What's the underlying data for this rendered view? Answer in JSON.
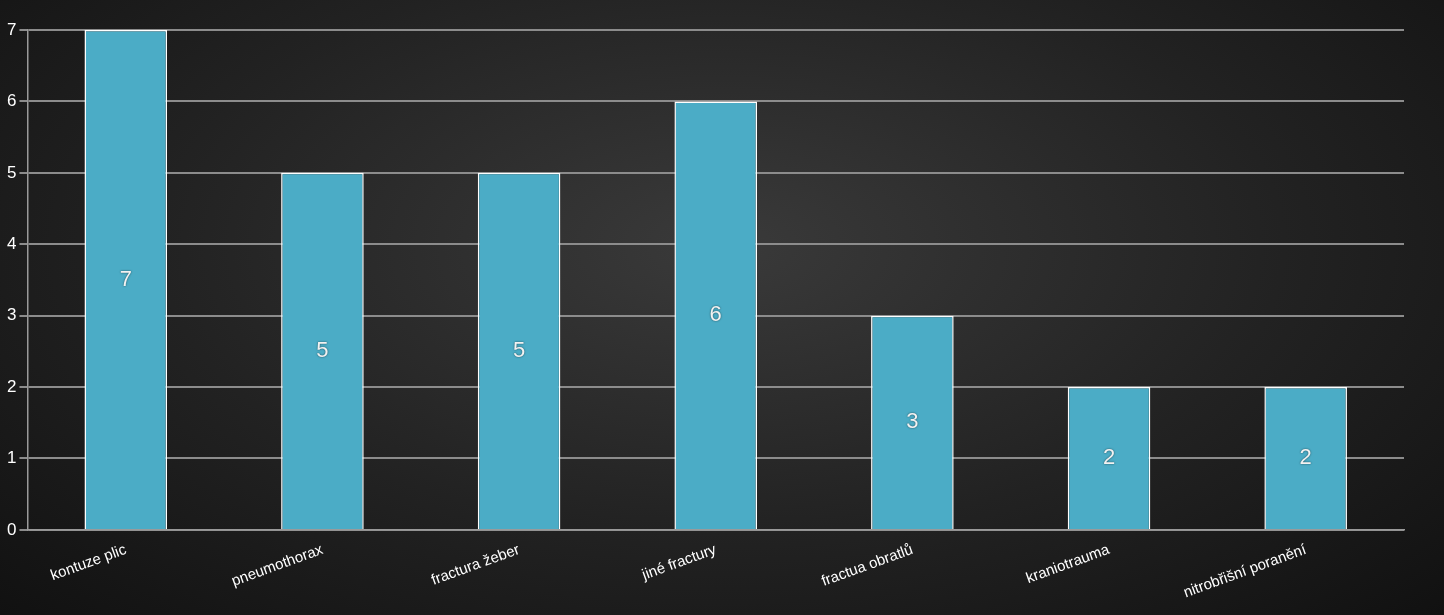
{
  "chart_data": {
    "type": "bar",
    "categories": [
      "kontuze plic",
      "pneumothorax",
      "fractura žeber",
      "jiné fractury",
      "fractua obratlů",
      "kraniotrauma",
      "nitrobřišní poranění"
    ],
    "values": [
      7,
      5,
      5,
      6,
      3,
      2,
      2
    ],
    "color": "#4bacc6",
    "ylim": [
      0,
      7
    ],
    "yticks": [
      0,
      1,
      2,
      3,
      4,
      5,
      6,
      7
    ],
    "grid": true,
    "data_labels": true
  }
}
